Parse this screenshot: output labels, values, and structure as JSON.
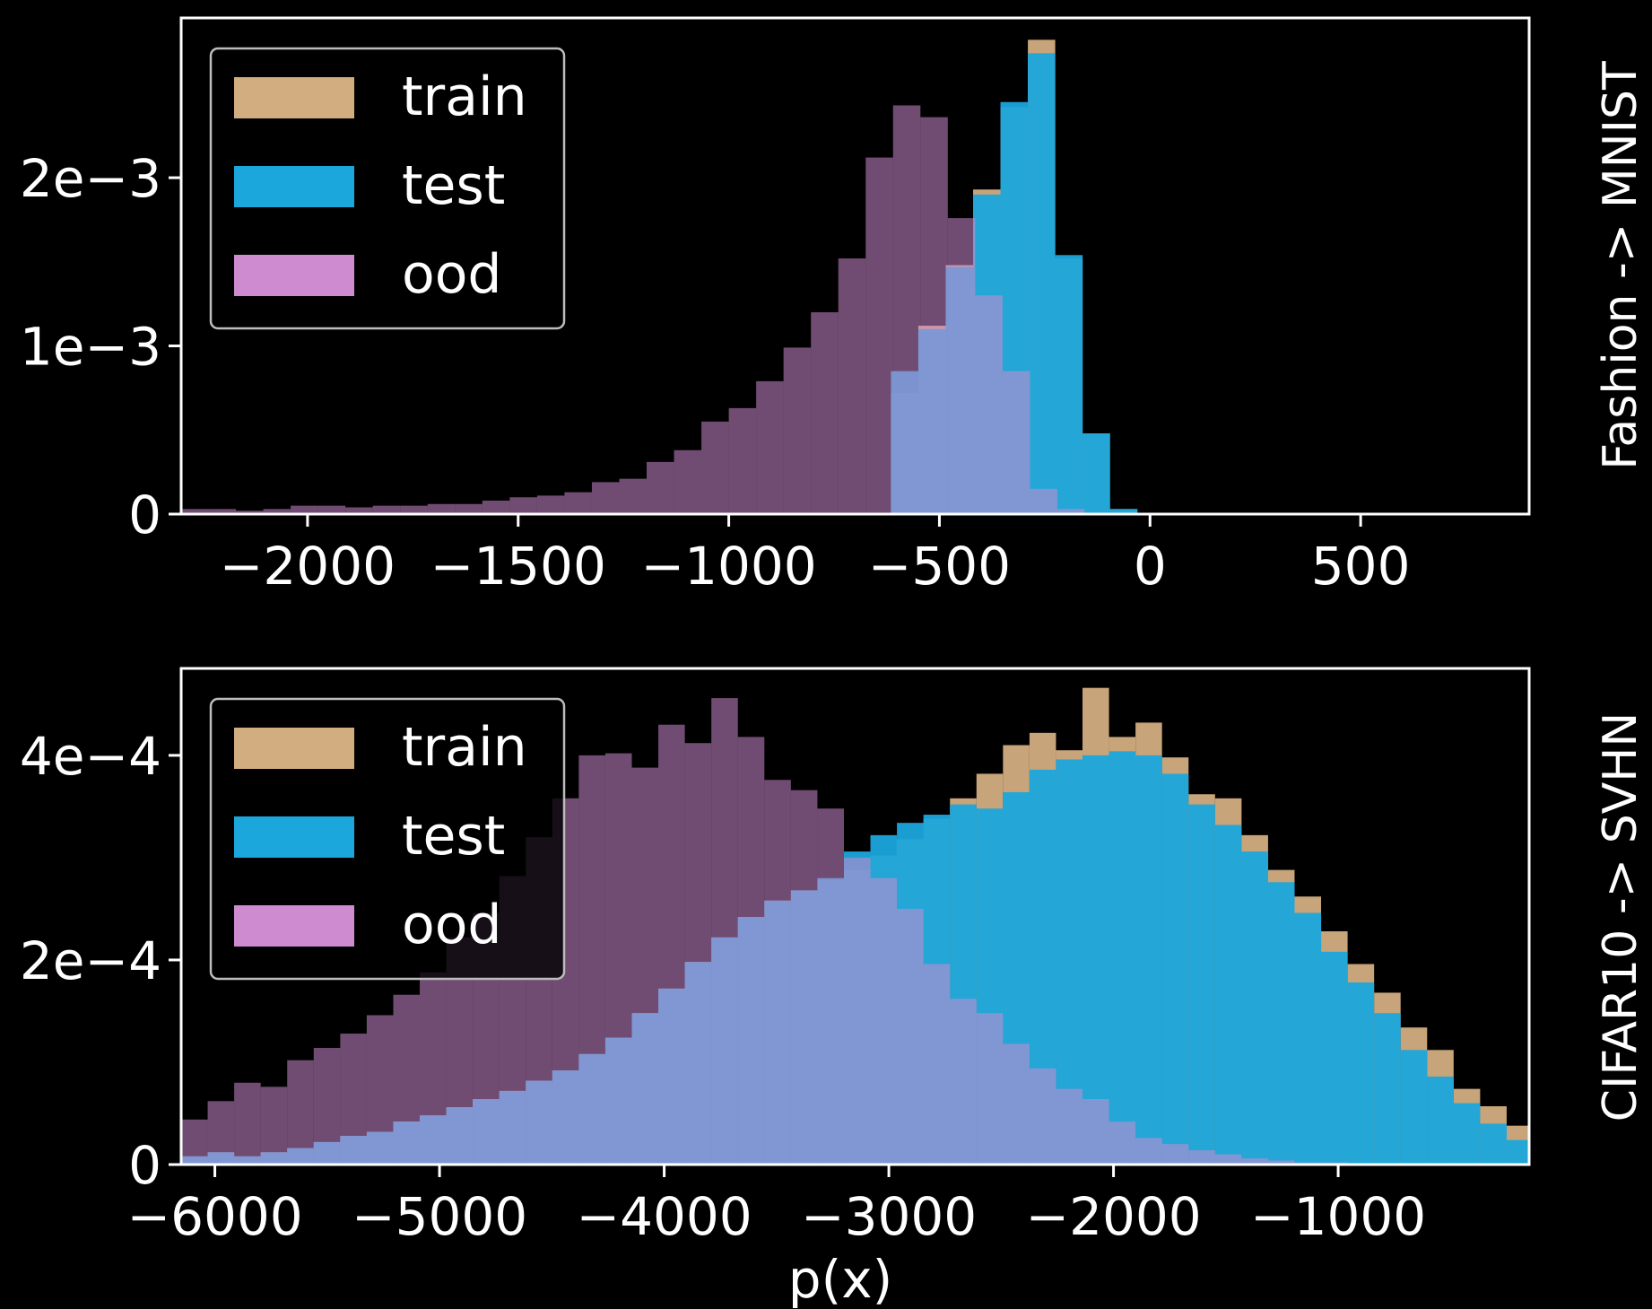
{
  "colors": {
    "background": "#000000",
    "axes": "#ffffff",
    "train": "#d2ad80",
    "test": "#1ba6dc",
    "ood": "#ce8bcf"
  },
  "chart_data": [
    {
      "type": "histogram",
      "side_label": "Fashion -> MNIST",
      "xlabel": "",
      "xlim": [
        -2300,
        900
      ],
      "ylim": [
        0,
        0.00295
      ],
      "x_ticks": [
        -2000,
        -1500,
        -1000,
        -500,
        0,
        500
      ],
      "x_tick_labels": [
        "−2000",
        "−1500",
        "−1000",
        "−500",
        "0",
        "500"
      ],
      "y_ticks": [
        0,
        0.001,
        0.002
      ],
      "y_tick_labels": [
        "0",
        "1e−3",
        "2e−3"
      ],
      "legend": {
        "position": "upper left",
        "entries": [
          "train",
          "test",
          "ood"
        ]
      },
      "series": [
        {
          "name": "train",
          "bin_start": -615,
          "bin_width": 65,
          "values": [
            0.00072,
            0.00112,
            0.00148,
            0.00193,
            0.00242,
            0.00282,
            0.00152,
            0.00048,
            3e-05
          ]
        },
        {
          "name": "test",
          "bin_start": -615,
          "bin_width": 65,
          "values": [
            0.00085,
            0.0011,
            0.00147,
            0.0019,
            0.00245,
            0.00274,
            0.00154,
            0.00048,
            3e-05
          ]
        },
        {
          "name": "ood",
          "bin_start": -2300,
          "bin_width": 65,
          "values": [
            3e-05,
            3e-05,
            2e-05,
            3e-05,
            5e-05,
            5e-05,
            4e-05,
            5e-05,
            5e-05,
            6e-05,
            6e-05,
            8e-05,
            0.0001,
            0.00011,
            0.00013,
            0.00019,
            0.00021,
            0.00031,
            0.00038,
            0.00055,
            0.00063,
            0.00079,
            0.00099,
            0.0012,
            0.00152,
            0.00212,
            0.00243,
            0.00236,
            0.00176,
            0.0013,
            0.00085,
            0.00015,
            3e-05
          ]
        }
      ]
    },
    {
      "type": "histogram",
      "side_label": "CIFAR10 -> SVHN",
      "xlabel": "p(x)",
      "xlim": [
        -6150,
        -150
      ],
      "ylim": [
        0,
        0.000485
      ],
      "x_ticks": [
        -6000,
        -5000,
        -4000,
        -3000,
        -2000,
        -1000
      ],
      "x_tick_labels": [
        "−6000",
        "−5000",
        "−4000",
        "−3000",
        "−2000",
        "−1000"
      ],
      "y_ticks": [
        0,
        0.0002,
        0.0004
      ],
      "y_tick_labels": [
        "0",
        "2e−4",
        "4e−4"
      ],
      "legend": {
        "position": "upper left",
        "entries": [
          "train",
          "test",
          "ood"
        ]
      },
      "series": [
        {
          "name": "train",
          "bin_start": -6150,
          "bin_width": 118,
          "values": [
            8e-06,
            1.2e-05,
            8e-06,
            1.2e-05,
            1.6e-05,
            2.2e-05,
            2.8e-05,
            3.2e-05,
            4.2e-05,
            4.8e-05,
            5.6e-05,
            6.4e-05,
            7.2e-05,
            8.2e-05,
            9.2e-05,
            0.000108,
            0.000124,
            0.000148,
            0.000172,
            0.000198,
            0.000222,
            0.000242,
            0.000258,
            0.000268,
            0.000278,
            0.000288,
            0.000302,
            0.000318,
            0.000338,
            0.000358,
            0.000382,
            0.00041,
            0.000422,
            0.000405,
            0.000466,
            0.000418,
            0.000432,
            0.000398,
            0.000362,
            0.000358,
            0.000322,
            0.000288,
            0.000262,
            0.000228,
            0.000196,
            0.000168,
            0.000134,
            0.000112,
            7.4e-05,
            5.7e-05,
            3.8e-05,
            2.2e-05,
            1.2e-05
          ]
        },
        {
          "name": "test",
          "bin_start": -6150,
          "bin_width": 118,
          "values": [
            8e-06,
            1.2e-05,
            8e-06,
            1.2e-05,
            1.6e-05,
            2.2e-05,
            2.8e-05,
            3.2e-05,
            4.2e-05,
            4.8e-05,
            5.6e-05,
            6.4e-05,
            7.2e-05,
            8.2e-05,
            9.2e-05,
            0.000108,
            0.000124,
            0.000148,
            0.000172,
            0.000198,
            0.000222,
            0.000242,
            0.000258,
            0.000268,
            0.00028,
            0.000306,
            0.000322,
            0.000334,
            0.000342,
            0.000352,
            0.000348,
            0.000364,
            0.000386,
            0.000396,
            0.0004,
            0.000404,
            0.0004,
            0.000382,
            0.000352,
            0.000332,
            0.000306,
            0.000276,
            0.000246,
            0.000208,
            0.000178,
            0.000148,
            0.000112,
            8.6e-05,
            6e-05,
            4e-05,
            2.4e-05,
            1.2e-05,
            6e-06
          ]
        },
        {
          "name": "ood",
          "bin_start": -6150,
          "bin_width": 118,
          "values": [
            4.4e-05,
            6.2e-05,
            8e-05,
            7.6e-05,
            0.000102,
            0.000114,
            0.000128,
            0.000146,
            0.000166,
            0.000188,
            0.000222,
            0.000246,
            0.000282,
            0.00032,
            0.000358,
            0.0004,
            0.000402,
            0.000388,
            0.00043,
            0.000412,
            0.000456,
            0.000418,
            0.000376,
            0.000366,
            0.000348,
            0.0003,
            0.00028,
            0.00025,
            0.000196,
            0.000162,
            0.000148,
            0.000118,
            9.4e-05,
            7.4e-05,
            6.4e-05,
            4.2e-05,
            2.6e-05,
            2e-05,
            1.4e-05,
            1e-05,
            6e-06,
            4e-06,
            2e-06,
            2e-06,
            1e-06,
            1e-06,
            1e-06,
            0.0,
            0.0,
            0.0,
            0.0,
            0.0,
            0.0
          ]
        }
      ]
    }
  ]
}
